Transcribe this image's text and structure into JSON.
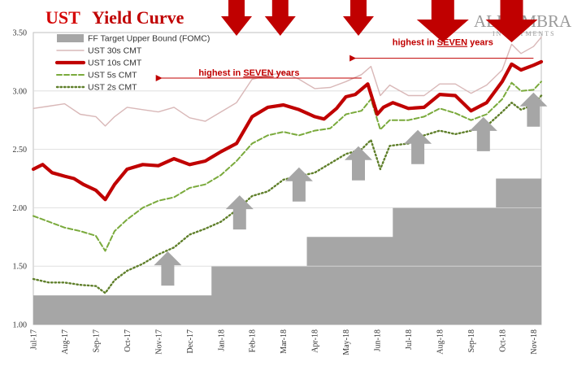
{
  "chart_data": {
    "type": "line",
    "title_primary": "UST",
    "title_secondary": "Yield Curve",
    "watermark": {
      "line1": "ALHAMBRA",
      "line2": "INVESTMENTS"
    },
    "ylim": [
      1.0,
      3.5
    ],
    "yticks": [
      "1.00",
      "1.50",
      "2.00",
      "2.50",
      "3.00",
      "3.50"
    ],
    "xticks": [
      "Jul-17",
      "Aug-17",
      "Sep-17",
      "Oct-17",
      "Nov-17",
      "Dec-17",
      "Jan-18",
      "Feb-18",
      "Mar-18",
      "Apr-18",
      "May-18",
      "Jun-18",
      "Jul-18",
      "Aug-18",
      "Sep-18",
      "Oct-18",
      "Nov-18"
    ],
    "series": [
      {
        "name": "FF Target Upper Bound (FOMC)",
        "kind": "step-area",
        "color": "#a6a6a6",
        "points": [
          [
            0,
            1.25
          ],
          [
            5.7,
            1.25
          ],
          [
            5.7,
            1.5
          ],
          [
            8.75,
            1.5
          ],
          [
            8.75,
            1.75
          ],
          [
            11.5,
            1.75
          ],
          [
            11.5,
            2.0
          ],
          [
            14.8,
            2.0
          ],
          [
            14.8,
            2.25
          ],
          [
            16.25,
            2.25
          ]
        ]
      },
      {
        "name": "UST 30s CMT",
        "color": "#d9b8b8",
        "points": [
          [
            0,
            2.85
          ],
          [
            0.5,
            2.87
          ],
          [
            1,
            2.89
          ],
          [
            1.5,
            2.8
          ],
          [
            2,
            2.78
          ],
          [
            2.3,
            2.7
          ],
          [
            2.6,
            2.78
          ],
          [
            3,
            2.86
          ],
          [
            3.5,
            2.84
          ],
          [
            4,
            2.82
          ],
          [
            4.5,
            2.86
          ],
          [
            5,
            2.77
          ],
          [
            5.5,
            2.74
          ],
          [
            6,
            2.82
          ],
          [
            6.5,
            2.9
          ],
          [
            7,
            3.1
          ],
          [
            7.5,
            3.13
          ],
          [
            8,
            3.16
          ],
          [
            8.5,
            3.1
          ],
          [
            9,
            3.02
          ],
          [
            9.5,
            3.03
          ],
          [
            10,
            3.08
          ],
          [
            10.5,
            3.14
          ],
          [
            10.8,
            3.21
          ],
          [
            11.1,
            2.96
          ],
          [
            11.4,
            3.05
          ],
          [
            12,
            2.96
          ],
          [
            12.5,
            2.96
          ],
          [
            13,
            3.06
          ],
          [
            13.5,
            3.06
          ],
          [
            14,
            2.98
          ],
          [
            14.5,
            3.05
          ],
          [
            15,
            3.18
          ],
          [
            15.3,
            3.4
          ],
          [
            15.6,
            3.32
          ],
          [
            16,
            3.38
          ],
          [
            16.25,
            3.46
          ]
        ]
      },
      {
        "name": "UST 10s CMT",
        "color": "#c00000",
        "points": [
          [
            0,
            2.33
          ],
          [
            0.3,
            2.37
          ],
          [
            0.6,
            2.3
          ],
          [
            1,
            2.27
          ],
          [
            1.3,
            2.25
          ],
          [
            1.6,
            2.2
          ],
          [
            2,
            2.15
          ],
          [
            2.3,
            2.07
          ],
          [
            2.6,
            2.2
          ],
          [
            3,
            2.33
          ],
          [
            3.5,
            2.37
          ],
          [
            4,
            2.36
          ],
          [
            4.5,
            2.42
          ],
          [
            5,
            2.37
          ],
          [
            5.5,
            2.4
          ],
          [
            6,
            2.48
          ],
          [
            6.5,
            2.55
          ],
          [
            7,
            2.78
          ],
          [
            7.5,
            2.86
          ],
          [
            8,
            2.88
          ],
          [
            8.5,
            2.84
          ],
          [
            9,
            2.78
          ],
          [
            9.3,
            2.76
          ],
          [
            9.7,
            2.85
          ],
          [
            10,
            2.95
          ],
          [
            10.3,
            2.97
          ],
          [
            10.7,
            3.06
          ],
          [
            11,
            2.8
          ],
          [
            11.2,
            2.86
          ],
          [
            11.5,
            2.9
          ],
          [
            12,
            2.85
          ],
          [
            12.5,
            2.86
          ],
          [
            13,
            2.97
          ],
          [
            13.5,
            2.96
          ],
          [
            14,
            2.83
          ],
          [
            14.5,
            2.9
          ],
          [
            15,
            3.08
          ],
          [
            15.3,
            3.23
          ],
          [
            15.6,
            3.18
          ],
          [
            16,
            3.22
          ],
          [
            16.25,
            3.25
          ]
        ]
      },
      {
        "name": "UST 5s CMT",
        "color": "#7aaa3c",
        "points": [
          [
            0,
            1.93
          ],
          [
            0.5,
            1.88
          ],
          [
            1,
            1.83
          ],
          [
            1.5,
            1.8
          ],
          [
            2,
            1.76
          ],
          [
            2.3,
            1.63
          ],
          [
            2.6,
            1.8
          ],
          [
            3,
            1.9
          ],
          [
            3.5,
            2.0
          ],
          [
            4,
            2.06
          ],
          [
            4.5,
            2.09
          ],
          [
            5,
            2.17
          ],
          [
            5.5,
            2.2
          ],
          [
            6,
            2.28
          ],
          [
            6.5,
            2.4
          ],
          [
            7,
            2.55
          ],
          [
            7.5,
            2.62
          ],
          [
            8,
            2.65
          ],
          [
            8.5,
            2.62
          ],
          [
            9,
            2.66
          ],
          [
            9.5,
            2.68
          ],
          [
            10,
            2.8
          ],
          [
            10.5,
            2.83
          ],
          [
            10.8,
            2.93
          ],
          [
            11.1,
            2.67
          ],
          [
            11.4,
            2.75
          ],
          [
            12,
            2.75
          ],
          [
            12.5,
            2.78
          ],
          [
            13,
            2.85
          ],
          [
            13.5,
            2.81
          ],
          [
            14,
            2.75
          ],
          [
            14.5,
            2.8
          ],
          [
            15,
            2.93
          ],
          [
            15.3,
            3.07
          ],
          [
            15.6,
            3.0
          ],
          [
            16,
            3.01
          ],
          [
            16.25,
            3.08
          ]
        ]
      },
      {
        "name": "UST 2s CMT",
        "color": "#5f7f2a",
        "points": [
          [
            0,
            1.39
          ],
          [
            0.5,
            1.36
          ],
          [
            1,
            1.36
          ],
          [
            1.5,
            1.34
          ],
          [
            2,
            1.33
          ],
          [
            2.3,
            1.27
          ],
          [
            2.6,
            1.38
          ],
          [
            3,
            1.46
          ],
          [
            3.5,
            1.52
          ],
          [
            4,
            1.6
          ],
          [
            4.5,
            1.66
          ],
          [
            5,
            1.77
          ],
          [
            5.5,
            1.82
          ],
          [
            6,
            1.88
          ],
          [
            6.5,
            1.98
          ],
          [
            7,
            2.1
          ],
          [
            7.5,
            2.14
          ],
          [
            8,
            2.24
          ],
          [
            8.5,
            2.27
          ],
          [
            9,
            2.3
          ],
          [
            9.5,
            2.38
          ],
          [
            10,
            2.46
          ],
          [
            10.5,
            2.5
          ],
          [
            10.8,
            2.58
          ],
          [
            11.1,
            2.33
          ],
          [
            11.4,
            2.53
          ],
          [
            12,
            2.55
          ],
          [
            12.5,
            2.62
          ],
          [
            13,
            2.66
          ],
          [
            13.5,
            2.63
          ],
          [
            14,
            2.66
          ],
          [
            14.5,
            2.7
          ],
          [
            15,
            2.82
          ],
          [
            15.3,
            2.9
          ],
          [
            15.6,
            2.84
          ],
          [
            16,
            2.88
          ],
          [
            16.25,
            2.96
          ]
        ]
      }
    ],
    "annotations": [
      {
        "text": "highest in SEVEN years",
        "highlight": "SEVEN",
        "at": [
          6.9,
          3.11
        ],
        "arrow_from": [
          10.5,
          3.11
        ],
        "arrow_to": [
          4.1,
          3.11
        ]
      },
      {
        "text": "highest in SEVEN years",
        "highlight": "SEVEN",
        "at": [
          13.1,
          3.37
        ],
        "arrow_from": [
          16.0,
          3.28
        ],
        "arrow_to": [
          10.3,
          3.28
        ]
      }
    ],
    "up_arrows": [
      [
        4.3,
        1.48
      ],
      [
        6.6,
        1.96
      ],
      [
        8.5,
        2.2
      ],
      [
        10.4,
        2.38
      ],
      [
        12.3,
        2.52
      ],
      [
        14.4,
        2.63
      ],
      [
        16.0,
        2.84
      ]
    ],
    "down_arrows": [
      6.5,
      7.9,
      10.4,
      13.1,
      15.3
    ]
  }
}
